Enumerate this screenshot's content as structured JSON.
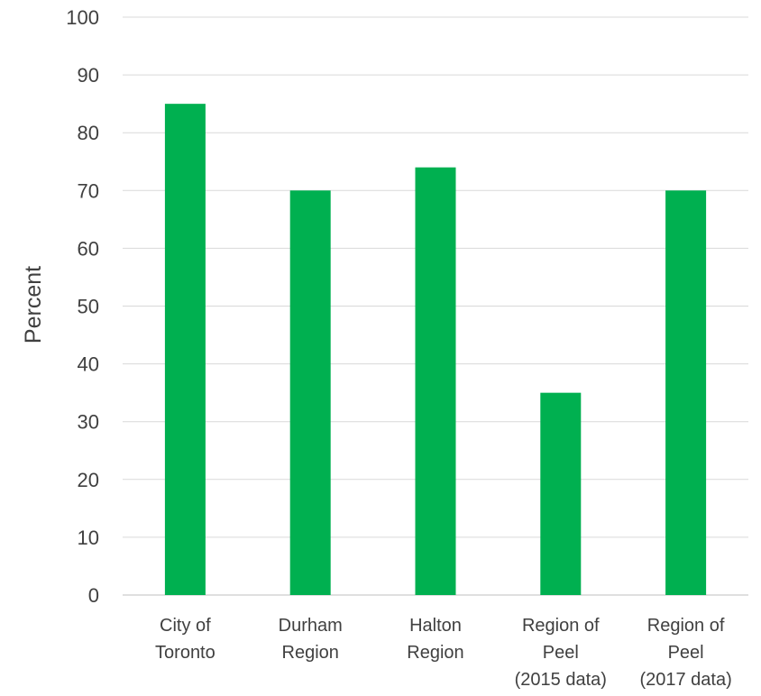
{
  "chart_data": {
    "type": "bar",
    "title": "",
    "xlabel": "",
    "ylabel": "Percent",
    "ylim": [
      0,
      100
    ],
    "yticks": [
      0,
      10,
      20,
      30,
      40,
      50,
      60,
      70,
      80,
      90,
      100
    ],
    "grid": true,
    "legend": "none",
    "bar_color": "#00b050",
    "categories": [
      [
        "City of",
        "Toronto"
      ],
      [
        "Durham",
        "Region"
      ],
      [
        "Halton",
        "Region"
      ],
      [
        "Region of",
        "Peel",
        "(2015 data)"
      ],
      [
        "Region of",
        "Peel",
        "(2017 data)"
      ]
    ],
    "values": [
      85,
      70,
      74,
      35,
      70
    ]
  }
}
